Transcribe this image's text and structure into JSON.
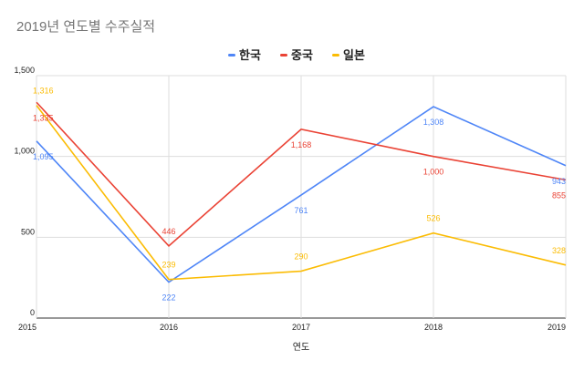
{
  "chart_data": {
    "type": "line",
    "title": "2019년 연도별 수주실적",
    "xlabel": "연도",
    "ylabel": "",
    "categories": [
      "2015",
      "2016",
      "2017",
      "2018",
      "2019"
    ],
    "ylim": [
      0,
      1500
    ],
    "yticks": [
      0,
      500,
      1000,
      1500
    ],
    "ytick_labels": [
      "0",
      "500",
      "1,000",
      "1,500"
    ],
    "grid": true,
    "legend_position": "top",
    "series": [
      {
        "name": "한국",
        "color": "#4f86f7",
        "values": [
          1095,
          222,
          761,
          1308,
          943
        ],
        "labels": [
          "1,095",
          "222",
          "761",
          "1,308",
          "943"
        ],
        "label_side": "below"
      },
      {
        "name": "중국",
        "color": "#ea4335",
        "values": [
          1335,
          446,
          1168,
          1000,
          855
        ],
        "labels": [
          "1,335",
          "446",
          "1,168",
          "1,000",
          "855"
        ],
        "label_side": "below"
      },
      {
        "name": "일본",
        "color": "#fbbc04",
        "values": [
          1316,
          239,
          290,
          526,
          328
        ],
        "labels": [
          "1,316",
          "239",
          "290",
          "526",
          "328"
        ],
        "label_side": "above"
      }
    ]
  }
}
